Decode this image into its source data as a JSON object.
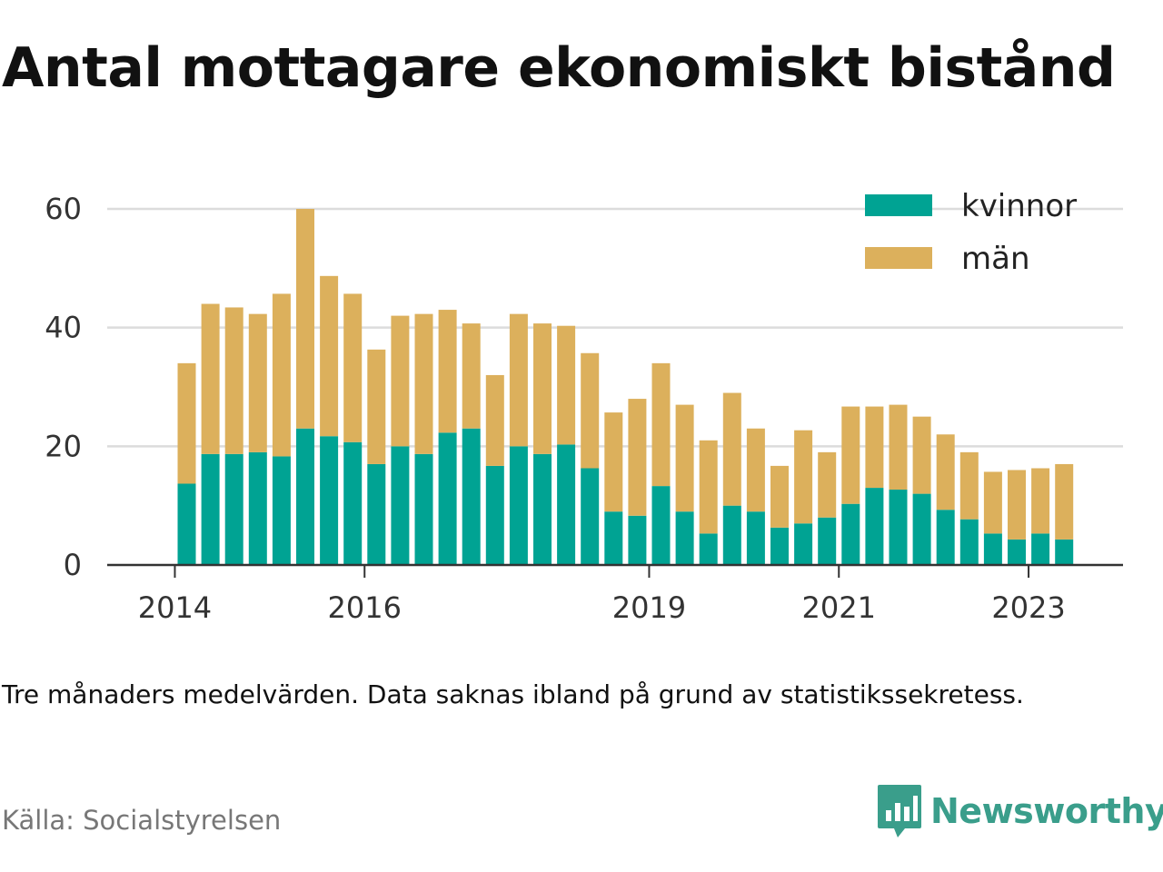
{
  "title": "Antal mottagare ekonomiskt bistånd",
  "note": "Tre månaders medelvärden. Data saknas ibland på grund av statistikssekretess.",
  "source": "Källa: Socialstyrelsen",
  "brand": {
    "name": "Newsworthy",
    "logo_icon": "bar-chart-speech-bubble-icon",
    "color": "#3a9e8b"
  },
  "chart_data": {
    "type": "bar",
    "stacked": true,
    "title": "Antal mottagare ekonomiskt bistånd",
    "xlabel": "",
    "ylabel": "",
    "ylim": [
      0,
      60
    ],
    "yticks": [
      0,
      20,
      40,
      60
    ],
    "grid": true,
    "legend_position": "top-right",
    "x_ticks": [
      {
        "label": "2014",
        "index": -1
      },
      {
        "label": "2016",
        "index": 7
      },
      {
        "label": "2019",
        "index": 19
      },
      {
        "label": "2021",
        "index": 27
      },
      {
        "label": "2023",
        "index": 35
      }
    ],
    "series": [
      {
        "name": "kvinnor",
        "color": "#00a393",
        "values": [
          13.7,
          18.7,
          18.7,
          19.0,
          18.3,
          23.0,
          21.7,
          20.7,
          17.0,
          20.0,
          18.7,
          22.3,
          23.0,
          16.7,
          20.0,
          18.7,
          20.3,
          16.3,
          9.0,
          8.3,
          13.3,
          9.0,
          5.3,
          10.0,
          9.0,
          6.3,
          7.0,
          8.0,
          10.3,
          13.0,
          12.7,
          12.0,
          9.3,
          7.7,
          5.3,
          4.3,
          5.3,
          4.3
        ]
      },
      {
        "name": "män",
        "color": "#dcb05c",
        "values": [
          20.3,
          25.3,
          24.7,
          23.3,
          27.4,
          37.0,
          27.0,
          25.0,
          19.3,
          22.0,
          23.6,
          20.7,
          17.7,
          15.3,
          22.3,
          22.0,
          20.0,
          19.4,
          16.7,
          19.7,
          20.7,
          18.0,
          15.7,
          19.0,
          14.0,
          10.4,
          15.7,
          11.0,
          16.4,
          13.7,
          14.3,
          13.0,
          12.7,
          11.3,
          10.4,
          11.7,
          11.0,
          12.7
        ]
      }
    ]
  }
}
